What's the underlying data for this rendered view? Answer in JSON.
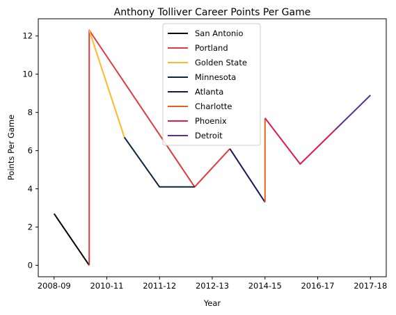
{
  "chart_data": {
    "type": "line",
    "title": "Anthony Tolliver Career Points Per Game",
    "xlabel": "Year",
    "ylabel": "Points Per Game",
    "ylim": [
      -0.6,
      12.9
    ],
    "x_ticks": [
      "2008-09",
      "2010-11",
      "2011-12",
      "2012-13",
      "2014-15",
      "2016-17",
      "2017-18"
    ],
    "y_ticks": [
      0,
      2,
      4,
      6,
      8,
      10,
      12
    ],
    "grid": false,
    "legend_position": "top-center",
    "series": [
      {
        "name": "San Antonio",
        "color": "#000000",
        "x": [
          0,
          1
        ],
        "y": [
          2.7,
          0.0
        ]
      },
      {
        "name": "Portland",
        "color": "#e03a3e",
        "x": [
          1,
          1,
          4,
          5
        ],
        "y": [
          0.0,
          12.3,
          4.1,
          6.1
        ]
      },
      {
        "name": "Golden State",
        "color": "#fdb927",
        "x": [
          1,
          2
        ],
        "y": [
          12.3,
          6.7
        ]
      },
      {
        "name": "Minnesota",
        "color": "#0c2340",
        "x": [
          2,
          3,
          4
        ],
        "y": [
          6.7,
          4.1,
          4.1
        ]
      },
      {
        "name": "Atlanta",
        "color": "#1d1160",
        "x": [
          5,
          6
        ],
        "y": [
          6.1,
          3.3
        ]
      },
      {
        "name": "Charlotte",
        "color": "#e56020",
        "x": [
          6,
          6
        ],
        "y": [
          3.3,
          7.7
        ]
      },
      {
        "name": "Phoenix",
        "color": "#e21a4a",
        "x": [
          6,
          7,
          8
        ],
        "y": [
          7.7,
          5.3,
          7.1
        ]
      },
      {
        "name": "Detroit",
        "color": "#5c2d91",
        "x": [
          8,
          9
        ],
        "y": [
          7.1,
          8.9
        ]
      }
    ]
  }
}
